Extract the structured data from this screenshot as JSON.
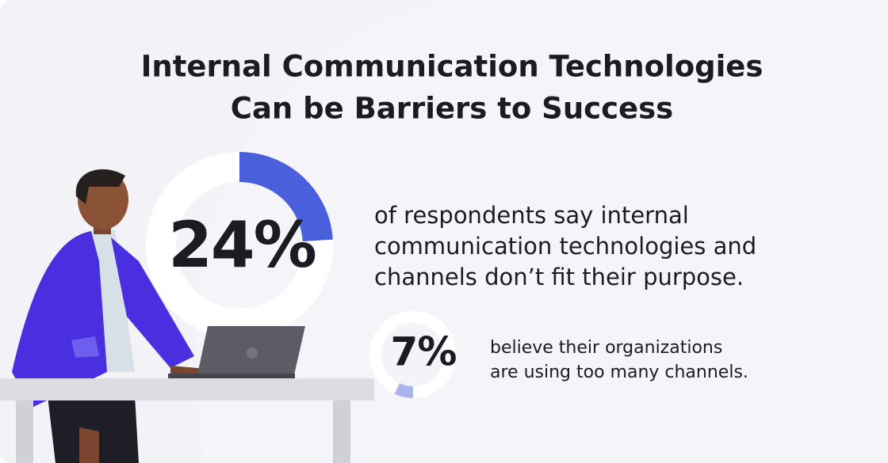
{
  "title": [
    "Internal Communication Technologies",
    "Can be Barriers to Success"
  ],
  "stats": [
    {
      "value": 24,
      "value_label": "24%",
      "text": [
        "of respondents say internal",
        "communication technologies and",
        "channels don’t fit their purpose."
      ]
    },
    {
      "value": 7,
      "value_label": "7%",
      "text": [
        "believe their organizations",
        "are using too many channels."
      ]
    }
  ]
}
